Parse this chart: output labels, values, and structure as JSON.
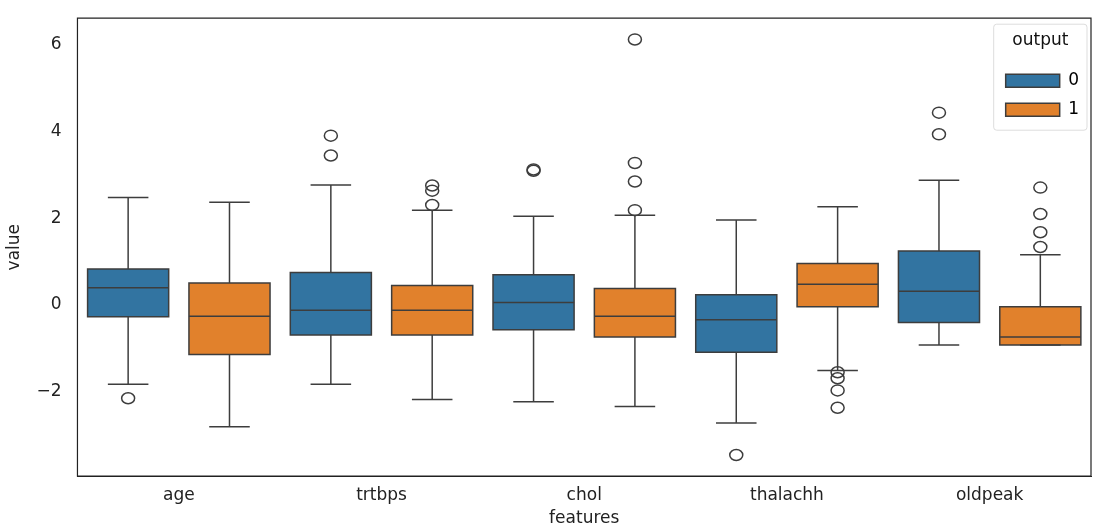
{
  "chart_data": {
    "type": "box",
    "xlabel": "features",
    "ylabel": "value",
    "legend_title": "output",
    "legend": "top right",
    "grid": false,
    "categories": [
      "age",
      "trtbps",
      "chol",
      "thalachh",
      "oldpeak"
    ],
    "ylim": [
      -3.95,
      6.62
    ],
    "yticks": [
      {
        "value": -2,
        "label": "−2"
      },
      0,
      2,
      4,
      6
    ],
    "series": [
      {
        "name": "0",
        "color": "#3274a1",
        "boxes": [
          {
            "low": -1.83,
            "q1": -0.27,
            "median": 0.4,
            "q3": 0.83,
            "high": 2.48,
            "outliers": [
              -2.15
            ]
          },
          {
            "low": -1.83,
            "q1": -0.69,
            "median": -0.12,
            "q3": 0.75,
            "high": 2.77,
            "outliers": [
              3.45,
              3.91
            ]
          },
          {
            "low": -2.23,
            "q1": -0.57,
            "median": 0.06,
            "q3": 0.7,
            "high": 2.05,
            "outliers": [
              3.1,
              3.13
            ]
          },
          {
            "low": -2.72,
            "q1": -1.09,
            "median": -0.34,
            "q3": 0.24,
            "high": 1.96,
            "outliers": [
              -3.46
            ]
          },
          {
            "low": -0.92,
            "q1": -0.4,
            "median": 0.32,
            "q3": 1.25,
            "high": 2.88,
            "outliers": [
              3.94,
              4.44
            ]
          }
        ]
      },
      {
        "name": "1",
        "color": "#e1812c",
        "boxes": [
          {
            "low": -2.81,
            "q1": -1.14,
            "median": -0.26,
            "q3": 0.51,
            "high": 2.37
          },
          {
            "low": -2.18,
            "q1": -0.69,
            "median": -0.12,
            "q3": 0.45,
            "high": 2.19,
            "outliers": [
              2.31,
              2.64,
              2.76
            ]
          },
          {
            "low": -2.34,
            "q1": -0.74,
            "median": -0.26,
            "q3": 0.38,
            "high": 2.07,
            "outliers": [
              2.19,
              2.85,
              3.28,
              6.13
            ]
          },
          {
            "low": -1.51,
            "q1": -0.04,
            "median": 0.48,
            "q3": 0.96,
            "high": 2.27,
            "outliers": [
              -1.55,
              -1.69,
              -1.97,
              -2.37
            ]
          },
          {
            "low": -0.92,
            "q1": -0.92,
            "median": -0.74,
            "q3": -0.04,
            "high": 1.16,
            "outliers": [
              1.34,
              1.68,
              2.1,
              2.71
            ]
          }
        ]
      }
    ]
  }
}
